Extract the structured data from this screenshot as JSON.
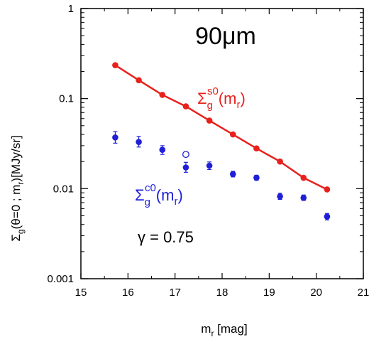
{
  "chart_data": {
    "type": "scatter",
    "title": "90μm",
    "xlabel": {
      "main": "m",
      "sub": "r",
      "tail": " [mag]"
    },
    "ylabel": {
      "pre": "Σ",
      "sub": "g",
      "tail": "(θ=0 ; m",
      "sub2": "r",
      "tail2": ")[MJy/sr]"
    },
    "xlim": [
      15,
      21
    ],
    "ylim": [
      0.001,
      1
    ],
    "yscale": "log",
    "grid": false,
    "x_ticks": [
      "15",
      "16",
      "17",
      "18",
      "19",
      "20",
      "21"
    ],
    "y_ticks": [
      "0.001",
      "0.01",
      "0.1",
      "1"
    ],
    "series": [
      {
        "label_main": "Σ",
        "label_sub": "g",
        "label_sup": "s0",
        "label_tail": "(m",
        "label_sub2": "r",
        "label_end": ")",
        "color": "#e8211c",
        "style": "line+markers",
        "x": [
          15.73,
          16.23,
          16.73,
          17.23,
          17.73,
          18.23,
          18.73,
          19.23,
          19.73,
          20.23
        ],
        "y": [
          0.235,
          0.16,
          0.11,
          0.082,
          0.057,
          0.04,
          0.028,
          0.02,
          0.0132,
          0.0098
        ]
      },
      {
        "label_main": "Σ",
        "label_sub": "g",
        "label_sup": "c0",
        "label_tail": "(m",
        "label_sub2": "r",
        "label_end": ")",
        "color": "#1f1fd8",
        "style": "markers+errorbars",
        "x": [
          15.73,
          16.23,
          16.73,
          17.23,
          17.73,
          18.23,
          18.73,
          19.23,
          19.73,
          20.23
        ],
        "y": [
          0.037,
          0.033,
          0.027,
          0.0172,
          0.018,
          0.0145,
          0.0132,
          0.0082,
          0.0079,
          0.0049
        ],
        "yerr_low": [
          0.032,
          0.029,
          0.024,
          0.0152,
          0.0163,
          0.0135,
          0.0124,
          0.0076,
          0.0074,
          0.0045
        ],
        "yerr_high": [
          0.043,
          0.038,
          0.03,
          0.0196,
          0.0198,
          0.0156,
          0.0141,
          0.0089,
          0.0085,
          0.0053
        ]
      }
    ],
    "open_points": [
      {
        "x": 17.23,
        "y": 0.024,
        "color": "#1f1fd8"
      }
    ],
    "annotation": "γ = 0.75"
  }
}
